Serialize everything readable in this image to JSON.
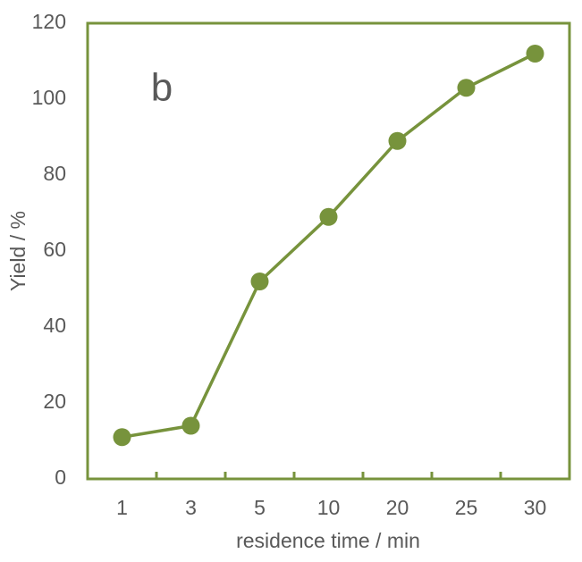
{
  "chart_data": {
    "type": "line",
    "annotation": "b",
    "x_label": "residence time / min",
    "y_label": "Yield / %",
    "categories": [
      "1",
      "3",
      "5",
      "10",
      "20",
      "25",
      "30"
    ],
    "series": [
      {
        "color": "#77933c",
        "values": [
          11,
          14,
          52,
          69,
          89,
          103,
          112
        ]
      }
    ],
    "ylim": [
      0,
      120
    ],
    "yticks": [
      0,
      20,
      40,
      60,
      80,
      100,
      120
    ],
    "grid": false
  }
}
